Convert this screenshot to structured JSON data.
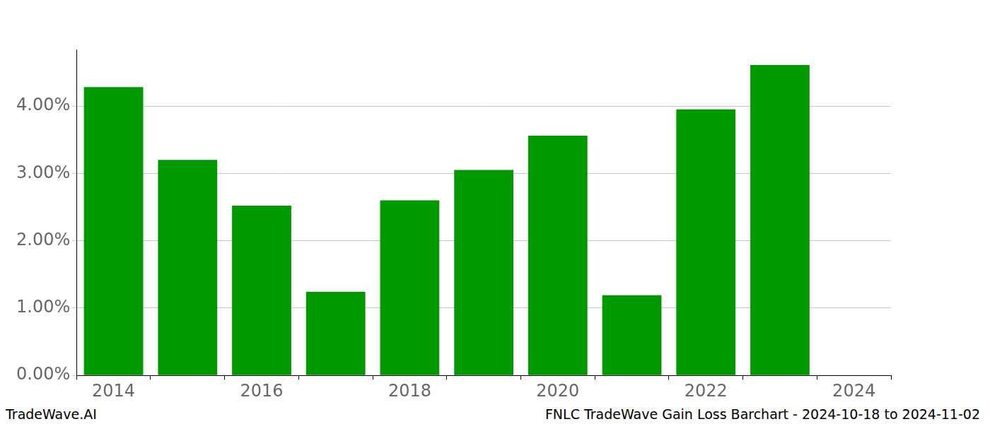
{
  "chart_data": {
    "type": "bar",
    "title": "FNLC TradeWave Gain Loss Barchart - 2024-10-18 to 2024-11-02",
    "annotations": [
      "TradeWave.AI"
    ],
    "categories": [
      "2014",
      null,
      "2016",
      null,
      "2018",
      null,
      "2020",
      null,
      "2022",
      null,
      "2024"
    ],
    "values": [
      4.28,
      3.2,
      2.52,
      1.24,
      2.6,
      3.05,
      3.56,
      1.19,
      3.95,
      4.61,
      null
    ],
    "color": "#009900",
    "ylim": [
      0,
      4.84
    ],
    "yticks": [
      {
        "value": 0,
        "label": "0.00%"
      },
      {
        "value": 1,
        "label": "1.00%"
      },
      {
        "value": 2,
        "label": "2.00%"
      },
      {
        "value": 3,
        "label": "3.00%"
      },
      {
        "value": 4,
        "label": "4.00%"
      }
    ],
    "grid": true
  }
}
